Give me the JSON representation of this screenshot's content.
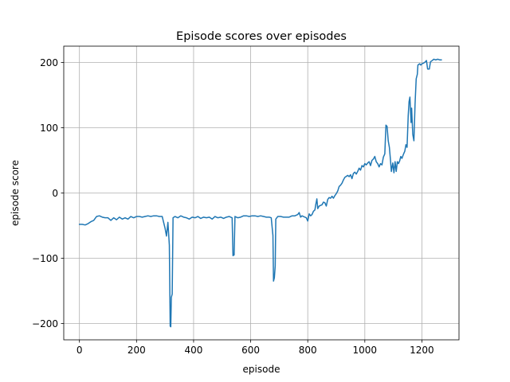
{
  "chart_data": {
    "type": "line",
    "title": "Episode scores over episodes",
    "xlabel": "episode",
    "ylabel": "episode score",
    "xlim": [
      -55,
      1330
    ],
    "ylim": [
      -225,
      225
    ],
    "xticks": [
      0,
      200,
      400,
      600,
      800,
      1000,
      1200
    ],
    "yticks": [
      -200,
      -100,
      0,
      100,
      200
    ],
    "grid": true,
    "series": [
      {
        "color": "#1f77b4",
        "points": [
          [
            0,
            -48
          ],
          [
            10,
            -48
          ],
          [
            20,
            -49
          ],
          [
            30,
            -47
          ],
          [
            40,
            -44
          ],
          [
            50,
            -42
          ],
          [
            55,
            -39
          ],
          [
            60,
            -36
          ],
          [
            70,
            -35
          ],
          [
            80,
            -37
          ],
          [
            90,
            -38
          ],
          [
            100,
            -38
          ],
          [
            110,
            -42
          ],
          [
            120,
            -38
          ],
          [
            130,
            -41
          ],
          [
            140,
            -37
          ],
          [
            150,
            -40
          ],
          [
            160,
            -38
          ],
          [
            170,
            -40
          ],
          [
            180,
            -36
          ],
          [
            190,
            -38
          ],
          [
            200,
            -36
          ],
          [
            210,
            -36
          ],
          [
            220,
            -37
          ],
          [
            230,
            -36
          ],
          [
            240,
            -35
          ],
          [
            250,
            -36
          ],
          [
            260,
            -35
          ],
          [
            270,
            -35
          ],
          [
            280,
            -36
          ],
          [
            290,
            -36
          ],
          [
            300,
            -54
          ],
          [
            305,
            -66
          ],
          [
            310,
            -45
          ],
          [
            315,
            -80
          ],
          [
            318,
            -204
          ],
          [
            320,
            -205
          ],
          [
            322,
            -160
          ],
          [
            325,
            -155
          ],
          [
            328,
            -38
          ],
          [
            335,
            -36
          ],
          [
            345,
            -38
          ],
          [
            355,
            -35
          ],
          [
            365,
            -37
          ],
          [
            375,
            -38
          ],
          [
            385,
            -40
          ],
          [
            395,
            -37
          ],
          [
            405,
            -38
          ],
          [
            415,
            -36
          ],
          [
            425,
            -39
          ],
          [
            435,
            -37
          ],
          [
            445,
            -38
          ],
          [
            455,
            -37
          ],
          [
            465,
            -40
          ],
          [
            475,
            -36
          ],
          [
            485,
            -38
          ],
          [
            495,
            -37
          ],
          [
            505,
            -39
          ],
          [
            515,
            -37
          ],
          [
            525,
            -36
          ],
          [
            535,
            -38
          ],
          [
            538,
            -96
          ],
          [
            542,
            -95
          ],
          [
            545,
            -36
          ],
          [
            555,
            -38
          ],
          [
            565,
            -37
          ],
          [
            575,
            -35
          ],
          [
            585,
            -35
          ],
          [
            595,
            -36
          ],
          [
            605,
            -35
          ],
          [
            615,
            -35
          ],
          [
            625,
            -36
          ],
          [
            635,
            -35
          ],
          [
            645,
            -36
          ],
          [
            655,
            -37
          ],
          [
            665,
            -37
          ],
          [
            672,
            -38
          ],
          [
            678,
            -65
          ],
          [
            680,
            -135
          ],
          [
            683,
            -130
          ],
          [
            686,
            -112
          ],
          [
            688,
            -40
          ],
          [
            695,
            -36
          ],
          [
            705,
            -36
          ],
          [
            715,
            -37
          ],
          [
            725,
            -37
          ],
          [
            735,
            -37
          ],
          [
            745,
            -35
          ],
          [
            755,
            -35
          ],
          [
            765,
            -33
          ],
          [
            770,
            -30
          ],
          [
            775,
            -37
          ],
          [
            780,
            -35
          ],
          [
            785,
            -36
          ],
          [
            795,
            -38
          ],
          [
            800,
            -43
          ],
          [
            805,
            -32
          ],
          [
            810,
            -35
          ],
          [
            815,
            -33
          ],
          [
            820,
            -28
          ],
          [
            825,
            -26
          ],
          [
            828,
            -18
          ],
          [
            832,
            -9
          ],
          [
            835,
            -24
          ],
          [
            840,
            -20
          ],
          [
            845,
            -19
          ],
          [
            850,
            -18
          ],
          [
            855,
            -14
          ],
          [
            860,
            -15
          ],
          [
            865,
            -20
          ],
          [
            870,
            -10
          ],
          [
            875,
            -7
          ],
          [
            880,
            -8
          ],
          [
            885,
            -5
          ],
          [
            890,
            -8
          ],
          [
            895,
            -4
          ],
          [
            900,
            -1
          ],
          [
            905,
            3
          ],
          [
            910,
            10
          ],
          [
            915,
            12
          ],
          [
            920,
            15
          ],
          [
            925,
            20
          ],
          [
            930,
            24
          ],
          [
            940,
            27
          ],
          [
            945,
            25
          ],
          [
            950,
            28
          ],
          [
            955,
            22
          ],
          [
            960,
            30
          ],
          [
            965,
            32
          ],
          [
            970,
            29
          ],
          [
            975,
            33
          ],
          [
            980,
            38
          ],
          [
            985,
            35
          ],
          [
            990,
            42
          ],
          [
            995,
            40
          ],
          [
            1000,
            45
          ],
          [
            1005,
            43
          ],
          [
            1010,
            46
          ],
          [
            1015,
            48
          ],
          [
            1020,
            42
          ],
          [
            1025,
            50
          ],
          [
            1030,
            52
          ],
          [
            1035,
            56
          ],
          [
            1040,
            48
          ],
          [
            1045,
            45
          ],
          [
            1050,
            40
          ],
          [
            1055,
            45
          ],
          [
            1060,
            43
          ],
          [
            1065,
            55
          ],
          [
            1070,
            60
          ],
          [
            1074,
            104
          ],
          [
            1078,
            102
          ],
          [
            1082,
            80
          ],
          [
            1086,
            70
          ],
          [
            1090,
            50
          ],
          [
            1093,
            33
          ],
          [
            1098,
            46
          ],
          [
            1102,
            31
          ],
          [
            1106,
            48
          ],
          [
            1110,
            33
          ],
          [
            1114,
            48
          ],
          [
            1118,
            45
          ],
          [
            1122,
            49
          ],
          [
            1126,
            56
          ],
          [
            1130,
            53
          ],
          [
            1136,
            60
          ],
          [
            1140,
            64
          ],
          [
            1144,
            74
          ],
          [
            1148,
            70
          ],
          [
            1152,
            118
          ],
          [
            1155,
            140
          ],
          [
            1158,
            147
          ],
          [
            1162,
            108
          ],
          [
            1164,
            130
          ],
          [
            1168,
            90
          ],
          [
            1172,
            80
          ],
          [
            1176,
            136
          ],
          [
            1180,
            175
          ],
          [
            1184,
            182
          ],
          [
            1186,
            196
          ],
          [
            1192,
            198
          ],
          [
            1196,
            196
          ],
          [
            1200,
            198
          ],
          [
            1206,
            199
          ],
          [
            1212,
            201
          ],
          [
            1216,
            203
          ],
          [
            1220,
            190
          ],
          [
            1226,
            190
          ],
          [
            1230,
            201
          ],
          [
            1236,
            203
          ],
          [
            1242,
            205
          ],
          [
            1248,
            204
          ],
          [
            1256,
            205
          ],
          [
            1262,
            204
          ],
          [
            1268,
            204
          ]
        ]
      }
    ]
  }
}
